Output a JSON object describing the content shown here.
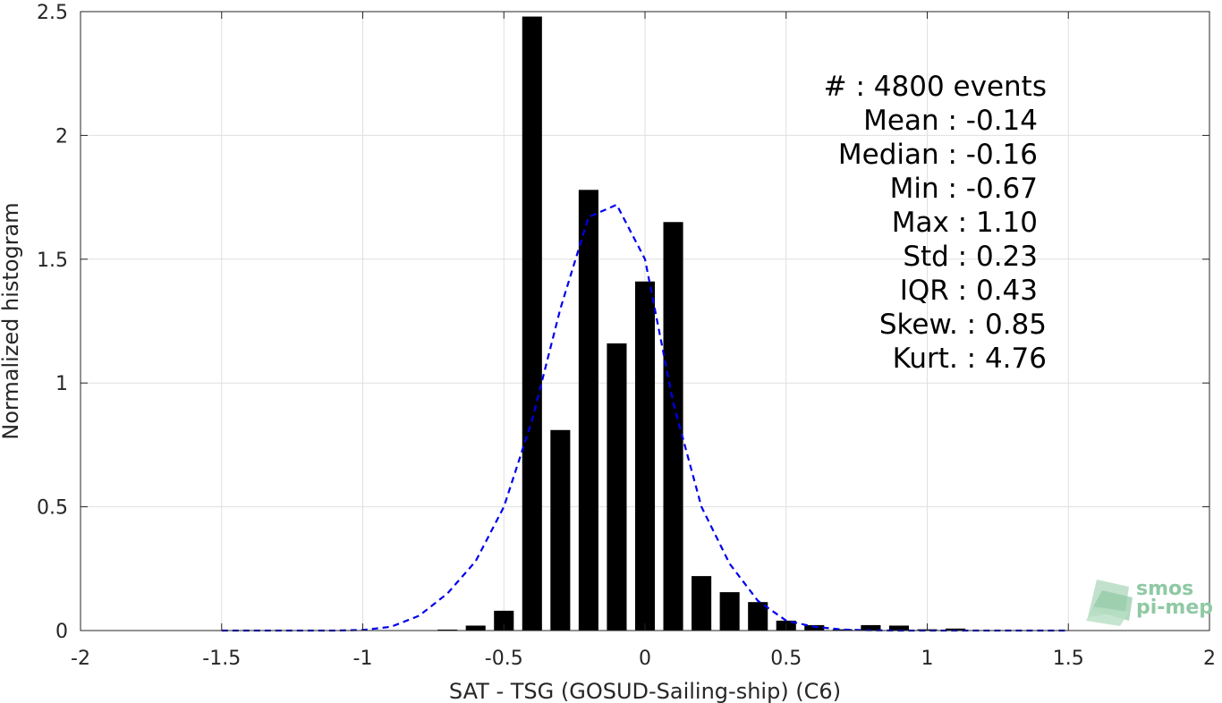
{
  "chart_data": {
    "type": "bar",
    "xlabel": "SAT - TSG (GOSUD-Sailing-ship) (C6)",
    "ylabel": "Normalized histogram",
    "xlim": [
      -2,
      2
    ],
    "ylim": [
      0,
      2.5
    ],
    "xticks": [
      -2,
      -1.5,
      -1,
      -0.5,
      0,
      0.5,
      1,
      1.5,
      2
    ],
    "xtick_labels": [
      "-2",
      "-1.5",
      "-1",
      "-0.5",
      "0",
      "0.5",
      "1",
      "1.5",
      "2"
    ],
    "yticks": [
      0,
      0.5,
      1,
      1.5,
      2,
      2.5
    ],
    "ytick_labels": [
      "0",
      "0.5",
      "1",
      "1.5",
      "2",
      "2.5"
    ],
    "grid": true,
    "bar_color": "#000000",
    "bins": [
      {
        "x": -0.7,
        "value": 0.004
      },
      {
        "x": -0.6,
        "value": 0.02
      },
      {
        "x": -0.5,
        "value": 0.08
      },
      {
        "x": -0.4,
        "value": 2.48
      },
      {
        "x": -0.3,
        "value": 0.81
      },
      {
        "x": -0.2,
        "value": 1.78
      },
      {
        "x": -0.1,
        "value": 1.16
      },
      {
        "x": 0.0,
        "value": 1.41
      },
      {
        "x": 0.1,
        "value": 1.65
      },
      {
        "x": 0.2,
        "value": 0.22
      },
      {
        "x": 0.3,
        "value": 0.155
      },
      {
        "x": 0.4,
        "value": 0.115
      },
      {
        "x": 0.5,
        "value": 0.04
      },
      {
        "x": 0.6,
        "value": 0.022
      },
      {
        "x": 0.7,
        "value": 0.005
      },
      {
        "x": 0.8,
        "value": 0.022
      },
      {
        "x": 0.9,
        "value": 0.02
      },
      {
        "x": 1.0,
        "value": 0.005
      },
      {
        "x": 1.1,
        "value": 0.008
      }
    ],
    "bar_width": 0.07,
    "curve": {
      "style": "dashed",
      "color": "#0000ee",
      "x": [
        -1.5,
        -1.4,
        -1.3,
        -1.2,
        -1.1,
        -1.0,
        -0.9,
        -0.8,
        -0.7,
        -0.6,
        -0.5,
        -0.4,
        -0.3,
        -0.2,
        -0.1,
        0.0,
        0.1,
        0.2,
        0.3,
        0.4,
        0.5,
        0.6,
        0.7,
        0.8,
        0.9,
        1.0,
        1.1,
        1.2,
        1.3,
        1.4,
        1.5
      ],
      "y": [
        0,
        0,
        0,
        0,
        0,
        0.002,
        0.015,
        0.06,
        0.15,
        0.28,
        0.5,
        0.85,
        1.3,
        1.67,
        1.72,
        1.5,
        0.92,
        0.5,
        0.27,
        0.12,
        0.04,
        0.015,
        0.004,
        0.001,
        0,
        0,
        0,
        0,
        0,
        0,
        0
      ]
    },
    "stats_lines": [
      "#  : 4800 events",
      "Mean : -0.14",
      "Median : -0.16",
      "Min : -0.67",
      "Max : 1.10",
      "Std : 0.23",
      "IQR : 0.43",
      "Skew. : 0.85",
      "Kurt. : 4.76"
    ]
  },
  "logo": {
    "line1": "smos",
    "line2": "pi-mep",
    "color": "#8fc9a4"
  }
}
